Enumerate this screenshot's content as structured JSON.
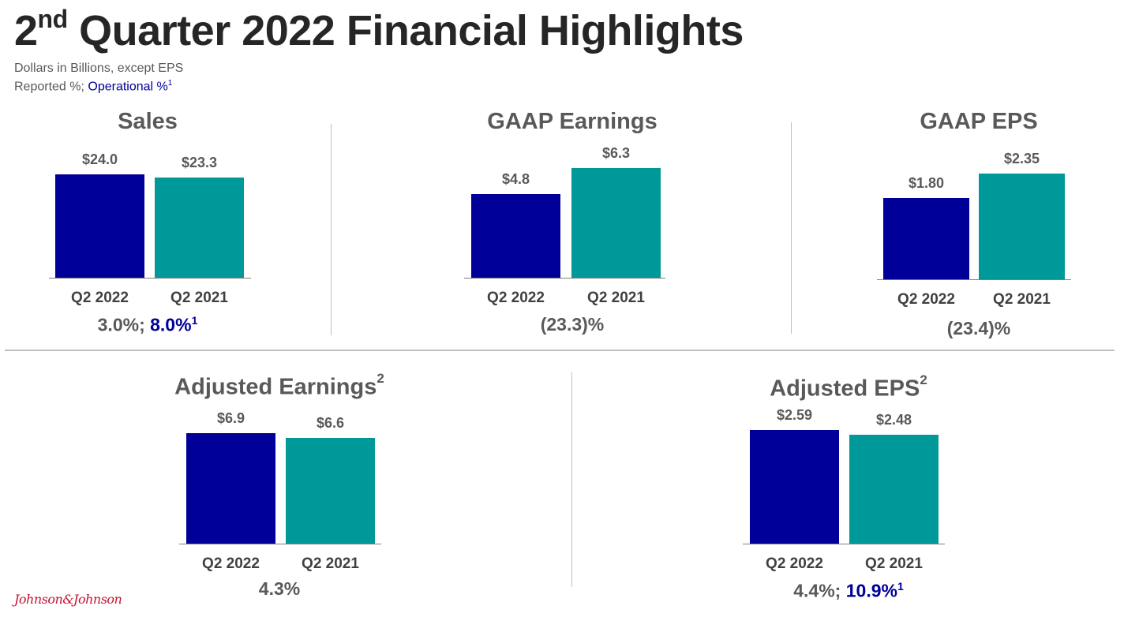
{
  "header": {
    "title_prefix": "2",
    "title_superscript": "nd",
    "title_rest": " Quarter 2022 Financial Highlights",
    "subtitle_line1": "Dollars in Billions, except EPS",
    "subtitle_line2_reported": "Reported %; ",
    "subtitle_line2_operational": "Operational %",
    "subtitle_footnote": "1"
  },
  "footer": {
    "logo_text": "Johnson&Johnson"
  },
  "colors": {
    "q2_2022": "#000099",
    "q2_2021": "#009999",
    "operational_text": "#000099"
  },
  "chart_data": [
    {
      "type": "bar",
      "title": "Sales",
      "title_footnote": "",
      "categories": [
        "Q2 2022",
        "Q2 2021"
      ],
      "values": [
        24.0,
        23.3
      ],
      "value_labels": [
        "$24.0",
        "$23.3"
      ],
      "growth_reported": "3.0%; ",
      "growth_operational": "8.0%",
      "growth_footnote": "1"
    },
    {
      "type": "bar",
      "title": "GAAP Earnings",
      "title_footnote": "",
      "categories": [
        "Q2 2022",
        "Q2 2021"
      ],
      "values": [
        4.8,
        6.3
      ],
      "value_labels": [
        "$4.8",
        "$6.3"
      ],
      "growth_reported": "(23.3)%",
      "growth_operational": "",
      "growth_footnote": ""
    },
    {
      "type": "bar",
      "title": "GAAP EPS",
      "title_footnote": "",
      "categories": [
        "Q2 2022",
        "Q2 2021"
      ],
      "values": [
        1.8,
        2.35
      ],
      "value_labels": [
        "$1.80",
        "$2.35"
      ],
      "growth_reported": "(23.4)%",
      "growth_operational": "",
      "growth_footnote": ""
    },
    {
      "type": "bar",
      "title": "Adjusted Earnings",
      "title_footnote": "2",
      "categories": [
        "Q2 2022",
        "Q2 2021"
      ],
      "values": [
        6.9,
        6.6
      ],
      "value_labels": [
        "$6.9",
        "$6.6"
      ],
      "growth_reported": "4.3%",
      "growth_operational": "",
      "growth_footnote": ""
    },
    {
      "type": "bar",
      "title": "Adjusted EPS",
      "title_footnote": "2",
      "categories": [
        "Q2 2022",
        "Q2 2021"
      ],
      "values": [
        2.59,
        2.48
      ],
      "value_labels": [
        "$2.59",
        "$2.48"
      ],
      "growth_reported": "4.4%; ",
      "growth_operational": "10.9%",
      "growth_footnote": "1"
    }
  ]
}
